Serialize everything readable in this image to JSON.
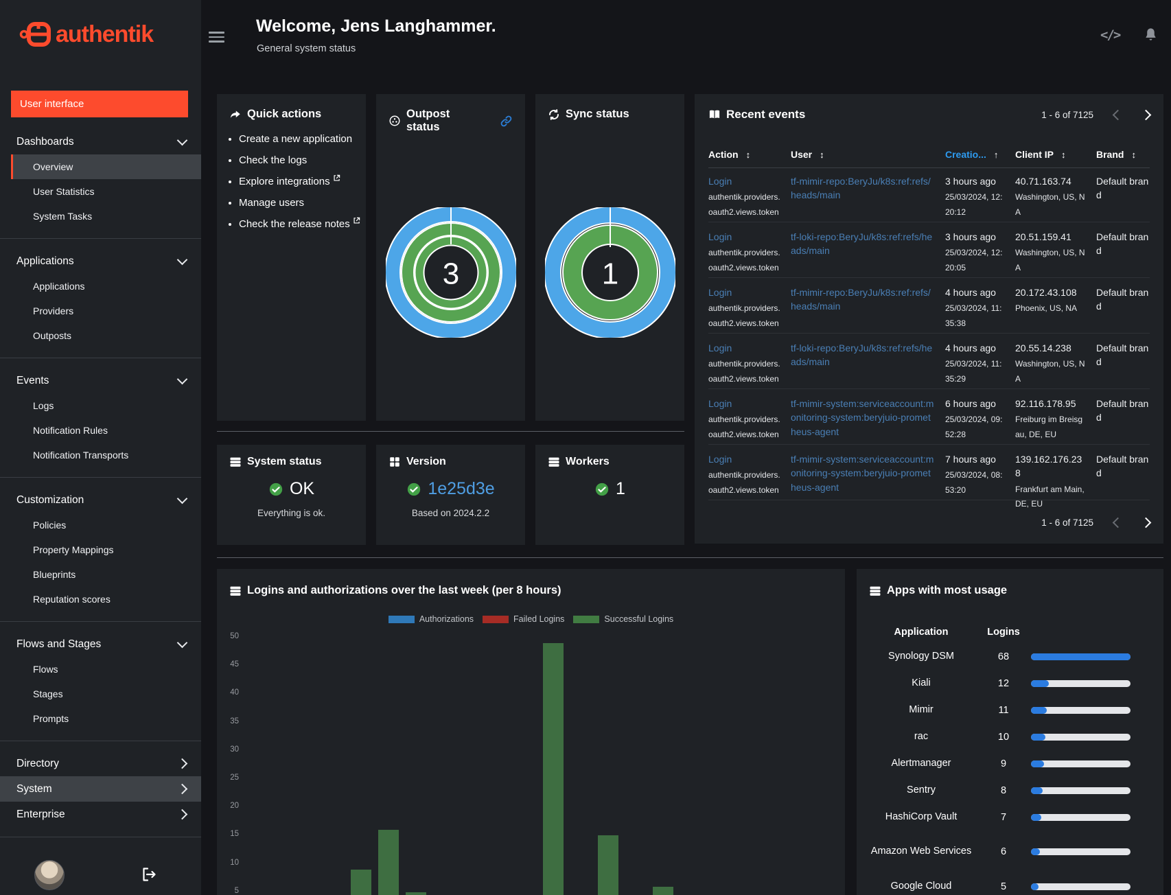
{
  "app": {
    "name": "authentik"
  },
  "colors": {
    "accent_orange": "#fd4b2d",
    "link_muted": "#4a7fb5",
    "link_bright": "#2e9bf0",
    "version_link": "#4f9ee3",
    "success_green": "#43a047",
    "donut_blue": "#4da6e8",
    "donut_green": "#57a452",
    "bar_green": "#3e6e41",
    "progress_blue": "#2b7ce0"
  },
  "icons": {
    "code": "</>",
    "sort_both": "↕",
    "sort_asc": "↑"
  },
  "sidebar": {
    "logo_text": "authentik",
    "user_interface_button": "User interface",
    "sections": [
      {
        "label": "Dashboards",
        "expanded": true,
        "active_item": "Overview",
        "items": [
          "Overview",
          "User Statistics",
          "System Tasks"
        ]
      },
      {
        "label": "Applications",
        "expanded": true,
        "items": [
          "Applications",
          "Providers",
          "Outposts"
        ]
      },
      {
        "label": "Events",
        "expanded": true,
        "items": [
          "Logs",
          "Notification Rules",
          "Notification Transports"
        ]
      },
      {
        "label": "Customization",
        "expanded": true,
        "items": [
          "Policies",
          "Property Mappings",
          "Blueprints",
          "Reputation scores"
        ]
      },
      {
        "label": "Flows and Stages",
        "expanded": true,
        "items": [
          "Flows",
          "Stages",
          "Prompts"
        ]
      },
      {
        "label": "Directory",
        "expanded": false,
        "items": []
      },
      {
        "label": "System",
        "expanded": false,
        "highlighted": true,
        "items": []
      },
      {
        "label": "Enterprise",
        "expanded": false,
        "items": []
      }
    ]
  },
  "header": {
    "title": "Welcome, Jens Langhammer.",
    "subtitle": "General system status"
  },
  "quick_actions": {
    "title": "Quick actions",
    "items": [
      {
        "label": "Create a new application",
        "external": false
      },
      {
        "label": "Check the logs",
        "external": false
      },
      {
        "label": "Explore integrations",
        "external": true
      },
      {
        "label": "Manage users",
        "external": false
      },
      {
        "label": "Check the release notes",
        "external": true
      }
    ]
  },
  "outpost_status": {
    "title": "Outpost status",
    "value": "3"
  },
  "sync_status": {
    "title": "Sync status",
    "value": "1"
  },
  "recent_events": {
    "title": "Recent events",
    "pagination": {
      "range": "1 - 6 of 7125",
      "prev_enabled": false,
      "next_enabled": true
    },
    "columns": [
      {
        "label": "Action",
        "sorted": false
      },
      {
        "label": "User",
        "sorted": false
      },
      {
        "label": "Creatio...",
        "sorted": true,
        "direction": "asc"
      },
      {
        "label": "Client IP",
        "sorted": false
      },
      {
        "label": "Brand",
        "sorted": false
      }
    ],
    "rows": [
      {
        "action": "Login",
        "action_detail": "authentik.providers.oauth2.views.token",
        "user": "tf-mimir-repo:BeryJu/k8s:ref:refs/heads/main",
        "relative_time": "3 hours ago",
        "timestamp": "25/03/2024, 12:20:12",
        "client_ip": "40.71.163.74",
        "location": "Washington, US, NA",
        "brand": "Default brand"
      },
      {
        "action": "Login",
        "action_detail": "authentik.providers.oauth2.views.token",
        "user": "tf-loki-repo:BeryJu/k8s:ref:refs/heads/main",
        "relative_time": "3 hours ago",
        "timestamp": "25/03/2024, 12:20:05",
        "client_ip": "20.51.159.41",
        "location": "Washington, US, NA",
        "brand": "Default brand"
      },
      {
        "action": "Login",
        "action_detail": "authentik.providers.oauth2.views.token",
        "user": "tf-mimir-repo:BeryJu/k8s:ref:refs/heads/main",
        "relative_time": "4 hours ago",
        "timestamp": "25/03/2024, 11:35:38",
        "client_ip": "20.172.43.108",
        "location": "Phoenix, US, NA",
        "brand": "Default brand"
      },
      {
        "action": "Login",
        "action_detail": "authentik.providers.oauth2.views.token",
        "user": "tf-loki-repo:BeryJu/k8s:ref:refs/heads/main",
        "relative_time": "4 hours ago",
        "timestamp": "25/03/2024, 11:35:29",
        "client_ip": "20.55.14.238",
        "location": "Washington, US, NA",
        "brand": "Default brand"
      },
      {
        "action": "Login",
        "action_detail": "authentik.providers.oauth2.views.token",
        "user": "tf-mimir-system:serviceaccount:monitoring-system:beryjuio-prometheus-agent",
        "relative_time": "6 hours ago",
        "timestamp": "25/03/2024, 09:52:28",
        "client_ip": "92.116.178.95",
        "location": "Freiburg im Breisgau, DE, EU",
        "brand": "Default brand"
      },
      {
        "action": "Login",
        "action_detail": "authentik.providers.oauth2.views.token",
        "user": "tf-mimir-system:serviceaccount:monitoring-system:beryjuio-prometheus-agent",
        "relative_time": "7 hours ago",
        "timestamp": "25/03/2024, 08:53:20",
        "client_ip": "139.162.176.238",
        "location": "Frankfurt am Main, DE, EU",
        "brand": "Default brand"
      }
    ]
  },
  "system_status": {
    "title": "System status",
    "value": "OK",
    "description": "Everything is ok."
  },
  "version": {
    "title": "Version",
    "value": "1e25d3e",
    "description": "Based on 2024.2.2"
  },
  "workers": {
    "title": "Workers",
    "value": "1"
  },
  "chart_data": {
    "type": "bar",
    "title": "Logins and authorizations over the last week (per 8 hours)",
    "xlabel": "",
    "ylabel": "",
    "ylim": [
      0,
      50
    ],
    "yticks": [
      5,
      10,
      15,
      20,
      25,
      30,
      35,
      40,
      45,
      50
    ],
    "x_bins": 21,
    "x_tick_labels_visible": false,
    "grid": false,
    "legend_position": "top",
    "legend": [
      {
        "label": "Authorizations",
        "color": "#2f79b8"
      },
      {
        "label": "Failed Logins",
        "color": "#a62c25"
      },
      {
        "label": "Successful Logins",
        "color": "#417c42"
      }
    ],
    "series": [
      {
        "name": "Authorizations",
        "values": [
          0,
          0,
          0,
          0,
          0,
          0,
          0,
          0,
          0,
          0,
          0,
          0,
          0,
          0,
          0,
          0,
          0,
          0,
          0,
          0,
          0
        ]
      },
      {
        "name": "Failed Logins",
        "values": [
          0,
          0,
          0,
          0,
          0,
          0,
          0,
          0,
          0,
          0,
          0,
          0,
          0,
          0,
          0,
          0,
          0,
          0,
          0,
          0,
          0
        ]
      },
      {
        "name": "Successful Logins",
        "values": [
          0,
          0,
          0,
          9,
          16,
          5,
          0,
          0,
          0,
          0,
          49,
          0,
          15,
          0,
          6,
          4,
          0,
          0,
          0,
          0,
          0
        ]
      }
    ],
    "bar_color": "#3e6e41"
  },
  "apps_usage": {
    "title": "Apps with most usage",
    "columns": [
      "Application",
      "Logins"
    ],
    "rows": [
      {
        "app": "Synology DSM",
        "logins": 68
      },
      {
        "app": "Kiali",
        "logins": 12
      },
      {
        "app": "Mimir",
        "logins": 11
      },
      {
        "app": "rac",
        "logins": 10
      },
      {
        "app": "Alertmanager",
        "logins": 9
      },
      {
        "app": "Sentry",
        "logins": 8
      },
      {
        "app": "HashiCorp Vault",
        "logins": 7
      },
      {
        "app": "Amazon Web Services",
        "logins": 6
      },
      {
        "app": "Google Cloud",
        "logins": 5
      }
    ]
  }
}
